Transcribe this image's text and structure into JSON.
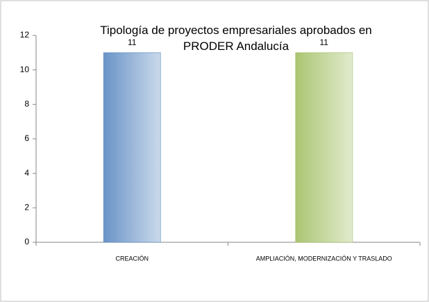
{
  "chart_data": {
    "type": "bar",
    "title": "Tipología de proyectos empresariales aprobados en PRODER Andalucía",
    "categories": [
      "CREACIÓN",
      "AMPLIACIÓN, MODERNIZACIÓN Y TRASLADO"
    ],
    "values": [
      11,
      11
    ],
    "colors": [
      "#4f81bd",
      "#9bbb59"
    ],
    "ylim": [
      0,
      12
    ],
    "yticks": [
      0,
      2,
      4,
      6,
      8,
      10,
      12
    ],
    "grid": false
  }
}
